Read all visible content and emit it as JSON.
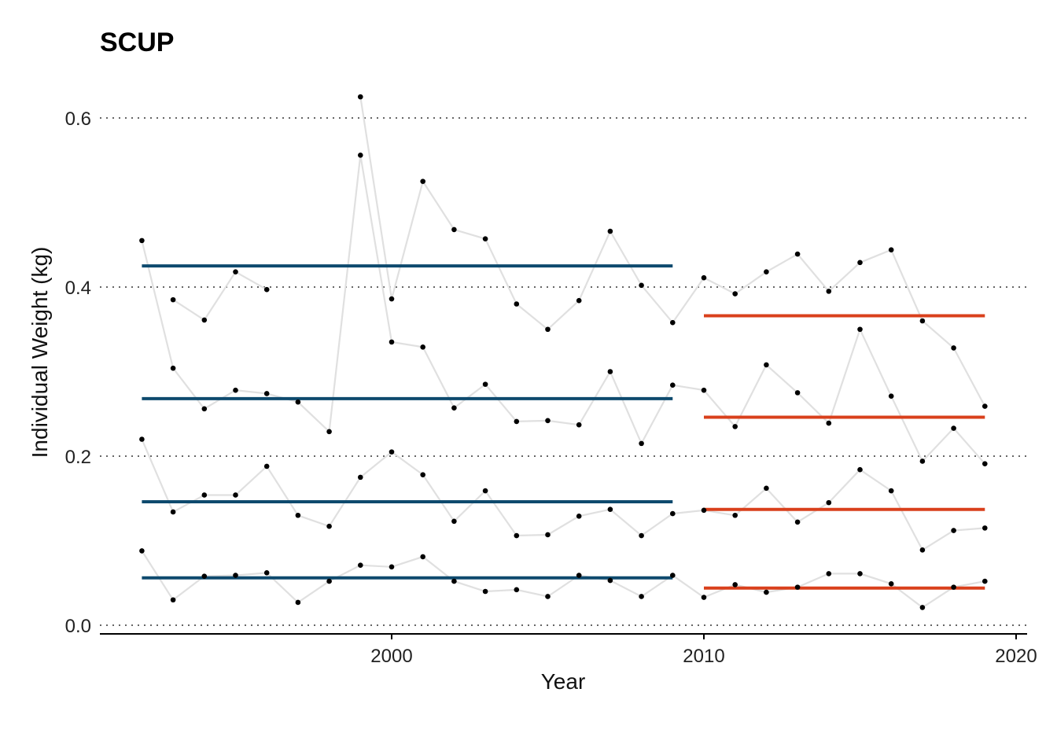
{
  "chart_data": {
    "type": "line",
    "title": "SCUP",
    "xlabel": "Year",
    "ylabel": "Individual Weight (kg)",
    "xlim": [
      1990.7,
      2020.4
    ],
    "ylim": [
      -0.02,
      0.64
    ],
    "x_ticks": [
      2000,
      2010,
      2020
    ],
    "y_ticks": [
      0.0,
      0.2,
      0.4,
      0.6
    ],
    "x_tick_labels": [
      "2000",
      "2010",
      "2020"
    ],
    "y_tick_labels": [
      "0.0",
      "0.2",
      "0.4",
      "0.6"
    ],
    "grid": "horizontal dotted",
    "colors": {
      "series_line": "#e0e0e0",
      "points": "#000000",
      "mean_before": "#0e4a6e",
      "mean_after": "#d9401c",
      "grid": "#333333"
    },
    "x": [
      1992,
      1993,
      1994,
      1995,
      1996,
      1997,
      1998,
      1999,
      2000,
      2001,
      2002,
      2003,
      2004,
      2005,
      2006,
      2007,
      2008,
      2009,
      2010,
      2011,
      2012,
      2013,
      2014,
      2015,
      2016,
      2017,
      2018,
      2019
    ],
    "series": [
      {
        "values": [
          null,
          0.385,
          0.361,
          0.418,
          0.397,
          null,
          null,
          0.625,
          0.386,
          0.525,
          0.468,
          0.457,
          0.38,
          0.35,
          0.384,
          0.466,
          0.402,
          0.358,
          0.411,
          0.392,
          0.418,
          0.439,
          0.395,
          0.429,
          0.444,
          0.36,
          0.328,
          0.259
        ]
      },
      {
        "values": [
          0.455,
          0.304,
          0.256,
          0.278,
          0.274,
          0.264,
          0.229,
          0.556,
          0.335,
          0.329,
          0.257,
          0.285,
          0.241,
          0.242,
          0.237,
          0.3,
          0.215,
          0.284,
          0.278,
          0.235,
          0.308,
          0.275,
          0.239,
          0.35,
          0.271,
          0.194,
          0.233,
          0.191
        ]
      },
      {
        "values": [
          0.22,
          0.134,
          0.154,
          0.154,
          0.188,
          0.13,
          0.117,
          0.175,
          0.205,
          0.178,
          0.123,
          0.159,
          0.106,
          0.107,
          0.129,
          0.137,
          0.106,
          0.132,
          0.136,
          0.13,
          0.162,
          0.122,
          0.145,
          0.184,
          0.159,
          0.089,
          0.112,
          0.115
        ]
      },
      {
        "values": [
          0.088,
          0.03,
          0.058,
          0.059,
          0.062,
          0.027,
          0.052,
          0.071,
          0.069,
          0.081,
          0.052,
          0.04,
          0.042,
          0.034,
          0.059,
          0.053,
          0.034,
          0.059,
          0.033,
          0.048,
          0.039,
          0.045,
          0.061,
          0.061,
          0.049,
          0.021,
          0.045,
          0.052
        ]
      }
    ],
    "mean_lines": [
      {
        "group": "before",
        "x_start": 1992,
        "x_end": 2009,
        "y": 0.425
      },
      {
        "group": "before",
        "x_start": 1992,
        "x_end": 2009,
        "y": 0.268
      },
      {
        "group": "before",
        "x_start": 1992,
        "x_end": 2009,
        "y": 0.146
      },
      {
        "group": "before",
        "x_start": 1992,
        "x_end": 2009,
        "y": 0.056
      },
      {
        "group": "after",
        "x_start": 2010,
        "x_end": 2019,
        "y": 0.366
      },
      {
        "group": "after",
        "x_start": 2010,
        "x_end": 2019,
        "y": 0.246
      },
      {
        "group": "after",
        "x_start": 2010,
        "x_end": 2019,
        "y": 0.137
      },
      {
        "group": "after",
        "x_start": 2010,
        "x_end": 2019,
        "y": 0.044
      }
    ]
  }
}
